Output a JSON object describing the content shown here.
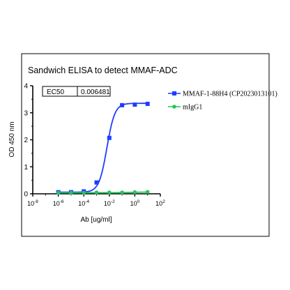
{
  "chart_data": {
    "type": "line",
    "title": "Sandwich ELISA to detect MMAF-ADC",
    "xlabel": "Ab [ug/ml]",
    "ylabel": "OD 450 nm",
    "x_scale": "log",
    "xlim": [
      1e-08,
      100
    ],
    "ylim": [
      0,
      4
    ],
    "x_ticks": [
      {
        "label_base": "10",
        "label_exp": "-8"
      },
      {
        "label_base": "10",
        "label_exp": "-6"
      },
      {
        "label_base": "10",
        "label_exp": "-4"
      },
      {
        "label_base": "10",
        "label_exp": "-2"
      },
      {
        "label_base": "10",
        "label_exp": "0"
      },
      {
        "label_base": "10",
        "label_exp": "2"
      }
    ],
    "y_ticks": [
      "0",
      "1",
      "2",
      "3",
      "4"
    ],
    "x_ticks_values": [
      1e-08,
      1e-06,
      0.0001,
      0.01,
      1,
      100
    ],
    "y_ticks_values": [
      0,
      1,
      2,
      3,
      4
    ],
    "ec50_table": {
      "label": "EC50",
      "value": "0.006481"
    },
    "series": [
      {
        "name": "MMAF-1-88H4 (CP2023013101)",
        "color": "#1f3cff",
        "marker": "square",
        "x": [
          1e-06,
          1e-05,
          0.0001,
          0.001,
          0.01,
          0.1,
          1,
          10
        ],
        "y": [
          0.06,
          0.06,
          0.09,
          0.42,
          2.07,
          3.28,
          3.3,
          3.33
        ],
        "fit": {
          "bottom": 0.06,
          "top": 3.35,
          "log_ec50": -2.188,
          "hill": 1.4
        }
      },
      {
        "name": "mIgG1",
        "color": "#22c55e",
        "marker": "circle",
        "x": [
          1e-06,
          1e-05,
          0.0001,
          0.001,
          0.01,
          0.1,
          1,
          10
        ],
        "y": [
          0.04,
          0.04,
          0.04,
          0.05,
          0.05,
          0.05,
          0.06,
          0.07
        ],
        "fit": {
          "bottom": 0.04,
          "top": 0.07,
          "log_ec50": 0,
          "hill": 0.6
        }
      }
    ]
  }
}
